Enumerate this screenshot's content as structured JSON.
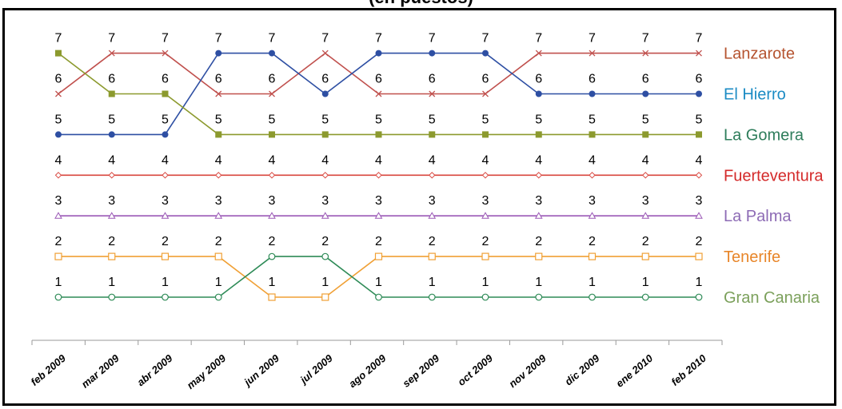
{
  "title": "(en puestos)",
  "chart_data": {
    "type": "line",
    "categories": [
      "feb 2009",
      "mar 2009",
      "abr 2009",
      "may 2009",
      "jun 2009",
      "jul 2009",
      "ago 2009",
      "sep 2009",
      "oct 2009",
      "nov 2009",
      "dic 2009",
      "ene 2010",
      "feb 2010"
    ],
    "ylim": [
      0.5,
      7.5
    ],
    "grid": false,
    "legend_position": "right",
    "series": [
      {
        "name": "Lanzarote",
        "color": "#b5532f",
        "line_color": "#c0504d",
        "marker": "x",
        "values": [
          6,
          7,
          7,
          6,
          6,
          7,
          6,
          6,
          6,
          7,
          7,
          7,
          7
        ]
      },
      {
        "name": "El Hierro",
        "color": "#1b8bc4",
        "line_color": "#2e4fa3",
        "marker": "circle-filled",
        "values": [
          5,
          5,
          5,
          7,
          7,
          6,
          7,
          7,
          7,
          6,
          6,
          6,
          6
        ]
      },
      {
        "name": "La Gomera",
        "color": "#2e7d5b",
        "line_color": "#8c9a2e",
        "marker": "square-filled",
        "values": [
          7,
          6,
          6,
          5,
          5,
          5,
          5,
          5,
          5,
          5,
          5,
          5,
          5
        ]
      },
      {
        "name": "Fuerteventura",
        "color": "#d42a2a",
        "line_color": "#d9463e",
        "marker": "diamond-open",
        "values": [
          4,
          4,
          4,
          4,
          4,
          4,
          4,
          4,
          4,
          4,
          4,
          4,
          4
        ]
      },
      {
        "name": "La Palma",
        "color": "#8d6bb5",
        "line_color": "#9b59b6",
        "marker": "triangle-open",
        "values": [
          3,
          3,
          3,
          3,
          3,
          3,
          3,
          3,
          3,
          3,
          3,
          3,
          3
        ]
      },
      {
        "name": "Tenerife",
        "color": "#e8862a",
        "line_color": "#f0a035",
        "marker": "square-open",
        "values": [
          2,
          2,
          2,
          2,
          1,
          1,
          2,
          2,
          2,
          2,
          2,
          2,
          2
        ]
      },
      {
        "name": "Gran Canaria",
        "color": "#7ba05b",
        "line_color": "#2e8b57",
        "marker": "circle-open",
        "values": [
          1,
          1,
          1,
          1,
          2,
          2,
          1,
          1,
          1,
          1,
          1,
          1,
          1
        ]
      }
    ],
    "data_labels": [
      "7",
      "6",
      "5",
      "4",
      "3",
      "2",
      "1"
    ]
  }
}
